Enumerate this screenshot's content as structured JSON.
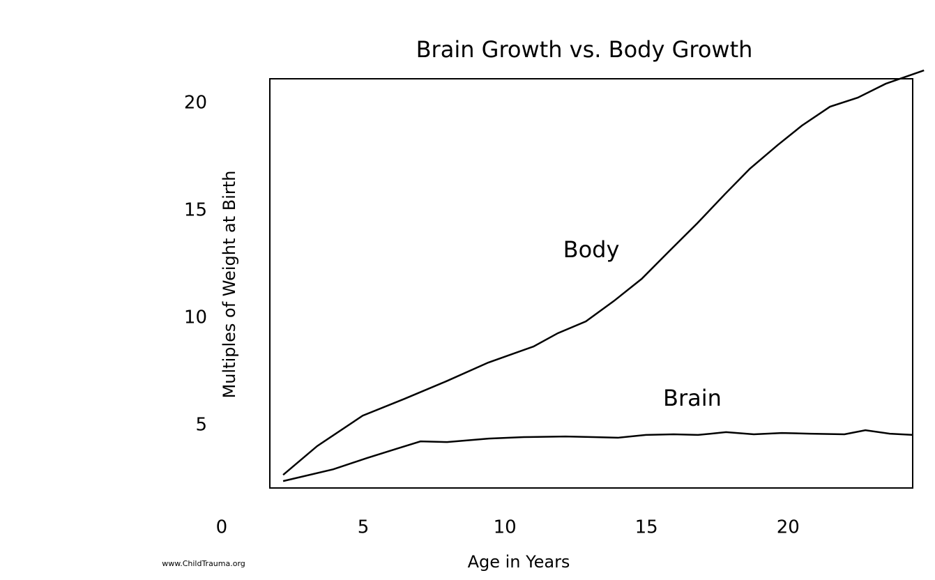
{
  "chart_data": {
    "type": "line",
    "title": "Brain Growth vs. Body Growth",
    "x_label": "Age in Years",
    "y_label": "Multiples of Weight at Birth",
    "source": "www.ChildTrauma.org",
    "xlim": [
      1.7,
      24.4
    ],
    "ylim": [
      2.08,
      21.14
    ],
    "xticks": [
      0,
      5,
      10,
      15,
      20
    ],
    "yticks": [
      5,
      10,
      15,
      20
    ],
    "grid": false,
    "series": [
      {
        "name": "Body",
        "color": "#000000",
        "x": [
          2.17,
          3.37,
          4.98,
          6.45,
          7.93,
          9.41,
          11.01,
          11.87,
          12.86,
          13.84,
          14.83,
          15.81,
          16.8,
          17.78,
          18.65,
          19.63,
          20.49,
          21.48,
          22.46,
          23.45,
          24.8
        ],
        "values": [
          2.69,
          4.03,
          5.45,
          6.23,
          7.05,
          7.92,
          8.67,
          9.29,
          9.84,
          10.78,
          11.82,
          13.12,
          14.42,
          15.78,
          16.95,
          18.05,
          18.96,
          19.84,
          20.26,
          20.91,
          21.53
        ]
      },
      {
        "name": "Brain",
        "color": "#000000",
        "x": [
          2.17,
          3.94,
          5.12,
          6.23,
          7.02,
          7.96,
          9.43,
          10.67,
          12.14,
          13.13,
          13.99,
          14.98,
          15.96,
          16.82,
          17.81,
          18.79,
          19.78,
          20.76,
          21.99,
          22.73,
          23.59,
          24.41
        ],
        "values": [
          2.4,
          2.95,
          3.47,
          3.93,
          4.25,
          4.22,
          4.38,
          4.45,
          4.48,
          4.45,
          4.42,
          4.55,
          4.58,
          4.55,
          4.68,
          4.58,
          4.64,
          4.61,
          4.58,
          4.77,
          4.61,
          4.55
        ]
      }
    ]
  }
}
